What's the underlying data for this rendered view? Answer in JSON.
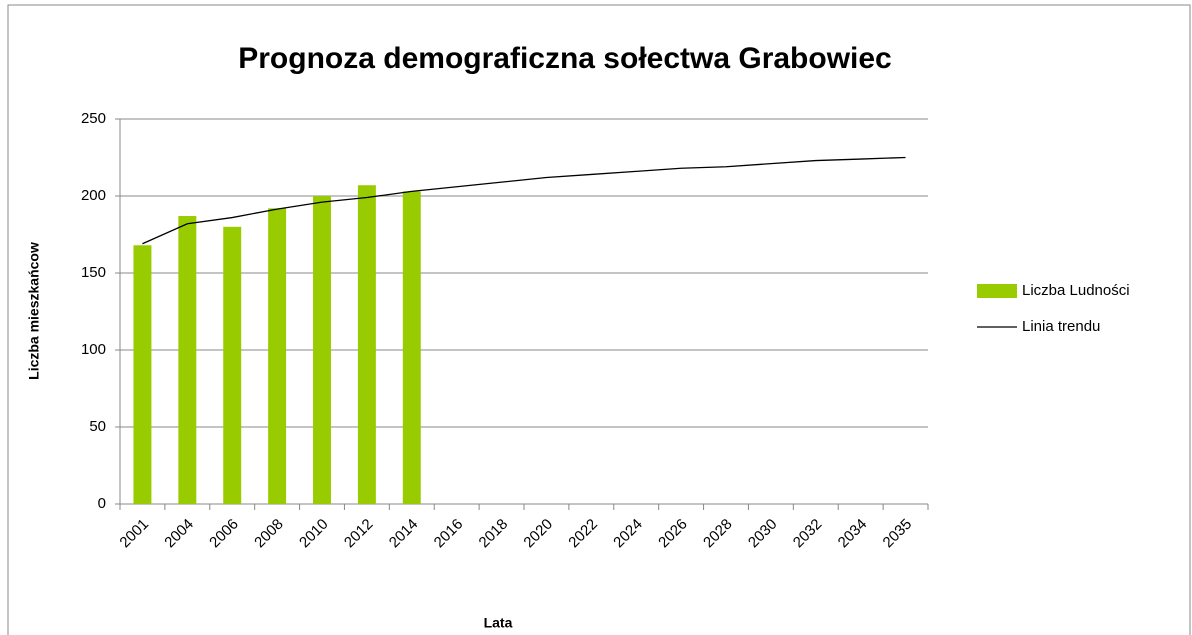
{
  "chart_data": {
    "type": "bar",
    "title": "Prognoza demograficzna sołectwa Grabowiec",
    "xlabel": "Lata",
    "ylabel": "Liczba mieszkańcow",
    "categories": [
      "2001",
      "2004",
      "2006",
      "2008",
      "2010",
      "2012",
      "2014",
      "2016",
      "2018",
      "2020",
      "2022",
      "2024",
      "2026",
      "2028",
      "2030",
      "2032",
      "2034",
      "2035"
    ],
    "series": [
      {
        "name": "Liczba Ludności",
        "type": "bar",
        "color": "#99cc00",
        "values": [
          168,
          187,
          180,
          192,
          200,
          207,
          203,
          null,
          null,
          null,
          null,
          null,
          null,
          null,
          null,
          null,
          null,
          null
        ]
      },
      {
        "name": "Linia trendu",
        "type": "line",
        "color": "#000000",
        "values": [
          169,
          182,
          186,
          191.5,
          196,
          199,
          203,
          206,
          209,
          212,
          214,
          216,
          218,
          219,
          221,
          223,
          224,
          225
        ]
      }
    ],
    "ylim": [
      0,
      250
    ],
    "yticks": [
      0,
      50,
      100,
      150,
      200,
      250
    ],
    "grid": true,
    "legend": "right"
  }
}
